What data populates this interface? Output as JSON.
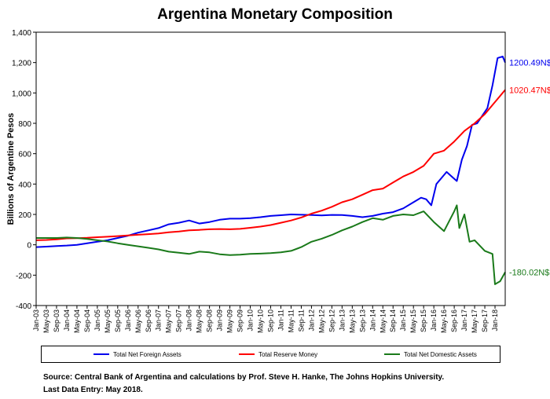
{
  "chart_data": {
    "type": "line",
    "title": "Argentina Monetary Composition",
    "xlabel": "",
    "ylabel": "Billions of Argentine Pesos",
    "ylim": [
      -400,
      1400
    ],
    "yticks": [
      -400,
      -200,
      0,
      200,
      400,
      600,
      800,
      1000,
      1200,
      1400
    ],
    "ytick_labels": [
      "-400",
      "-200",
      "0",
      "200",
      "400",
      "600",
      "800",
      "1,000",
      "1,200",
      "1,400"
    ],
    "xtick_labels": [
      "Jan-03",
      "May-03",
      "Sep-03",
      "Jan-04",
      "May-04",
      "Sep-04",
      "Jan-05",
      "May-05",
      "Sep-05",
      "Jan-06",
      "May-06",
      "Sep-06",
      "Jan-07",
      "May-07",
      "Sep-07",
      "Jan-08",
      "May-08",
      "Sep-08",
      "Jan-09",
      "May-09",
      "Sep-09",
      "Jan-10",
      "May-10",
      "Sep-10",
      "Jan-11",
      "May-11",
      "Sep-11",
      "Jan-12",
      "May-12",
      "Sep-12",
      "Jan-13",
      "May-13",
      "Sep-13",
      "Jan-14",
      "May-14",
      "Sep-14",
      "Jan-15",
      "May-15",
      "Sep-15",
      "Jan-16",
      "May-16",
      "Sep-16",
      "Jan-17",
      "May-17",
      "Sep-17",
      "Jan-18"
    ],
    "x_range": [
      "Jan-03",
      "May-18"
    ],
    "grid": false,
    "legend_position": "bottom",
    "series": [
      {
        "name": "Total Net Foreign Assets",
        "color": "#0000ee",
        "end_label": "1200.49N$",
        "points": [
          [
            "Jan-03",
            -15
          ],
          [
            "May-03",
            -12
          ],
          [
            "Sep-03",
            -8
          ],
          [
            "Jan-04",
            -5
          ],
          [
            "May-04",
            0
          ],
          [
            "Sep-04",
            10
          ],
          [
            "Jan-05",
            20
          ],
          [
            "May-05",
            30
          ],
          [
            "Sep-05",
            45
          ],
          [
            "Jan-06",
            60
          ],
          [
            "May-06",
            80
          ],
          [
            "Sep-06",
            95
          ],
          [
            "Jan-07",
            110
          ],
          [
            "May-07",
            135
          ],
          [
            "Sep-07",
            145
          ],
          [
            "Jan-08",
            160
          ],
          [
            "May-08",
            140
          ],
          [
            "Sep-08",
            150
          ],
          [
            "Jan-09",
            165
          ],
          [
            "May-09",
            172
          ],
          [
            "Sep-09",
            172
          ],
          [
            "Jan-10",
            175
          ],
          [
            "May-10",
            182
          ],
          [
            "Sep-10",
            190
          ],
          [
            "Jan-11",
            195
          ],
          [
            "May-11",
            200
          ],
          [
            "Sep-11",
            198
          ],
          [
            "Jan-12",
            196
          ],
          [
            "May-12",
            194
          ],
          [
            "Sep-12",
            197
          ],
          [
            "Jan-13",
            196
          ],
          [
            "May-13",
            190
          ],
          [
            "Sep-13",
            182
          ],
          [
            "Jan-14",
            190
          ],
          [
            "May-14",
            205
          ],
          [
            "Sep-14",
            215
          ],
          [
            "Jan-15",
            240
          ],
          [
            "May-15",
            280
          ],
          [
            "Aug-15",
            310
          ],
          [
            "Oct-15",
            300
          ],
          [
            "Dec-15",
            260
          ],
          [
            "Feb-16",
            400
          ],
          [
            "Apr-16",
            440
          ],
          [
            "Jun-16",
            480
          ],
          [
            "Aug-16",
            450
          ],
          [
            "Oct-16",
            420
          ],
          [
            "Dec-16",
            560
          ],
          [
            "Feb-17",
            650
          ],
          [
            "Apr-17",
            790
          ],
          [
            "Jun-17",
            800
          ],
          [
            "Aug-17",
            850
          ],
          [
            "Oct-17",
            900
          ],
          [
            "Dec-17",
            1050
          ],
          [
            "Feb-18",
            1230
          ],
          [
            "Apr-18",
            1240
          ],
          [
            "May-18",
            1200.49
          ]
        ]
      },
      {
        "name": "Total Reserve Money",
        "color": "#ff0000",
        "end_label": "1020.47N$",
        "points": [
          [
            "Jan-03",
            30
          ],
          [
            "May-03",
            32
          ],
          [
            "Sep-03",
            36
          ],
          [
            "Jan-04",
            42
          ],
          [
            "May-04",
            44
          ],
          [
            "Sep-04",
            46
          ],
          [
            "Jan-05",
            50
          ],
          [
            "May-05",
            53
          ],
          [
            "Sep-05",
            57
          ],
          [
            "Jan-06",
            62
          ],
          [
            "May-06",
            66
          ],
          [
            "Sep-06",
            70
          ],
          [
            "Jan-07",
            75
          ],
          [
            "May-07",
            82
          ],
          [
            "Sep-07",
            88
          ],
          [
            "Jan-08",
            95
          ],
          [
            "May-08",
            98
          ],
          [
            "Sep-08",
            102
          ],
          [
            "Jan-09",
            104
          ],
          [
            "May-09",
            102
          ],
          [
            "Sep-09",
            105
          ],
          [
            "Jan-10",
            112
          ],
          [
            "May-10",
            120
          ],
          [
            "Sep-10",
            130
          ],
          [
            "Jan-11",
            145
          ],
          [
            "May-11",
            160
          ],
          [
            "Sep-11",
            180
          ],
          [
            "Jan-12",
            205
          ],
          [
            "May-12",
            225
          ],
          [
            "Sep-12",
            250
          ],
          [
            "Jan-13",
            280
          ],
          [
            "May-13",
            300
          ],
          [
            "Sep-13",
            330
          ],
          [
            "Jan-14",
            360
          ],
          [
            "May-14",
            370
          ],
          [
            "Sep-14",
            410
          ],
          [
            "Jan-15",
            450
          ],
          [
            "May-15",
            480
          ],
          [
            "Sep-15",
            520
          ],
          [
            "Jan-16",
            600
          ],
          [
            "May-16",
            620
          ],
          [
            "Sep-16",
            680
          ],
          [
            "Jan-17",
            750
          ],
          [
            "May-17",
            800
          ],
          [
            "Sep-17",
            860
          ],
          [
            "Jan-18",
            940
          ],
          [
            "May-18",
            1020.47
          ]
        ]
      },
      {
        "name": "Total Net Domestic Assets",
        "color": "#1a7a1a",
        "end_label": "-180.02N$",
        "points": [
          [
            "Jan-03",
            45
          ],
          [
            "May-03",
            45
          ],
          [
            "Sep-03",
            45
          ],
          [
            "Jan-04",
            48
          ],
          [
            "May-04",
            45
          ],
          [
            "Sep-04",
            38
          ],
          [
            "Jan-05",
            30
          ],
          [
            "May-05",
            22
          ],
          [
            "Sep-05",
            10
          ],
          [
            "Jan-06",
            0
          ],
          [
            "May-06",
            -10
          ],
          [
            "Sep-06",
            -20
          ],
          [
            "Jan-07",
            -30
          ],
          [
            "May-07",
            -45
          ],
          [
            "Sep-07",
            -52
          ],
          [
            "Jan-08",
            -60
          ],
          [
            "May-08",
            -45
          ],
          [
            "Sep-08",
            -50
          ],
          [
            "Jan-09",
            -62
          ],
          [
            "May-09",
            -68
          ],
          [
            "Sep-09",
            -65
          ],
          [
            "Jan-10",
            -60
          ],
          [
            "May-10",
            -58
          ],
          [
            "Sep-10",
            -55
          ],
          [
            "Jan-11",
            -50
          ],
          [
            "May-11",
            -40
          ],
          [
            "Sep-11",
            -15
          ],
          [
            "Jan-12",
            20
          ],
          [
            "May-12",
            40
          ],
          [
            "Sep-12",
            65
          ],
          [
            "Jan-13",
            95
          ],
          [
            "May-13",
            120
          ],
          [
            "Sep-13",
            150
          ],
          [
            "Jan-14",
            175
          ],
          [
            "May-14",
            165
          ],
          [
            "Sep-14",
            190
          ],
          [
            "Jan-15",
            200
          ],
          [
            "May-15",
            195
          ],
          [
            "Sep-15",
            220
          ],
          [
            "Jan-16",
            150
          ],
          [
            "May-16",
            90
          ],
          [
            "Sep-16",
            220
          ],
          [
            "Oct-16",
            260
          ],
          [
            "Nov-16",
            110
          ],
          [
            "Jan-17",
            200
          ],
          [
            "Mar-17",
            20
          ],
          [
            "May-17",
            30
          ],
          [
            "Sep-17",
            -40
          ],
          [
            "Dec-17",
            -60
          ],
          [
            "Jan-18",
            -260
          ],
          [
            "Mar-18",
            -240
          ],
          [
            "May-18",
            -180.02
          ]
        ]
      }
    ]
  },
  "source_lines": [
    "Source: Central Bank of Argentina and calculations by Prof. Steve H. Hanke, The Johns Hopkins University.",
    "Last Data Entry: May 2018."
  ]
}
